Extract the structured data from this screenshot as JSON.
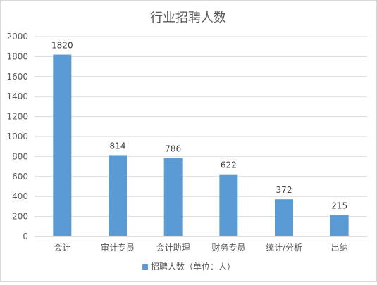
{
  "chart_data": {
    "type": "bar",
    "title": "行业招聘人数",
    "categories": [
      "会计",
      "审计专员",
      "会计助理",
      "财务专员",
      "统计/分析",
      "出纳"
    ],
    "series": [
      {
        "name": "招聘人数（单位：人）",
        "values": [
          1820,
          814,
          786,
          622,
          372,
          215
        ],
        "color": "#5b9bd5"
      }
    ],
    "ylim": [
      0,
      2000
    ],
    "yticks": [
      0,
      200,
      400,
      600,
      800,
      1000,
      1200,
      1400,
      1600,
      1800,
      2000
    ],
    "grid": true,
    "legend_position": "bottom",
    "data_labels": true
  }
}
